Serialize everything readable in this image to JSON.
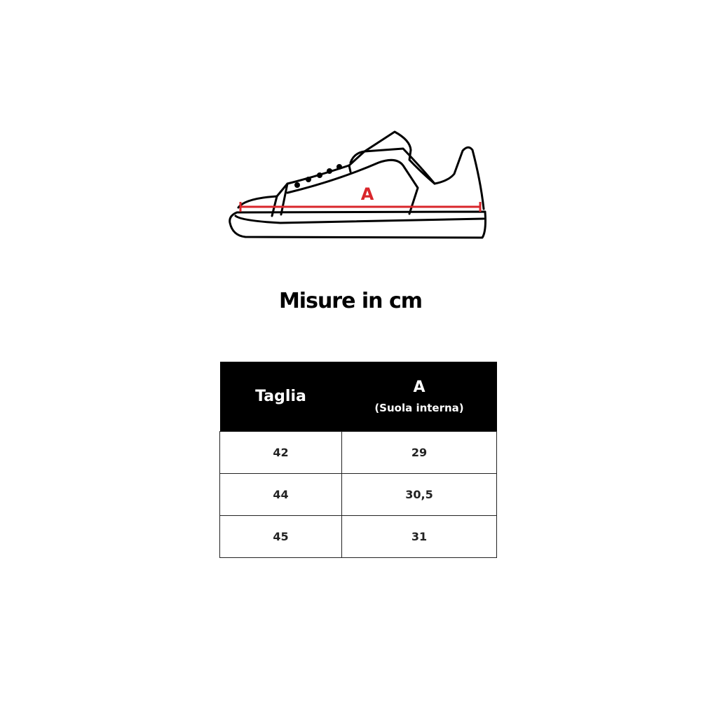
{
  "illustration": {
    "measure_label": "A",
    "measure_color": "#d9262b",
    "icon": "sneaker-outline"
  },
  "title": "Misure in cm",
  "table": {
    "headers": [
      {
        "label": "Taglia",
        "sub": ""
      },
      {
        "label": "A",
        "sub": "(Suola interna)"
      }
    ],
    "rows": [
      [
        "42",
        "29"
      ],
      [
        "44",
        "30,5"
      ],
      [
        "45",
        "31"
      ]
    ]
  }
}
